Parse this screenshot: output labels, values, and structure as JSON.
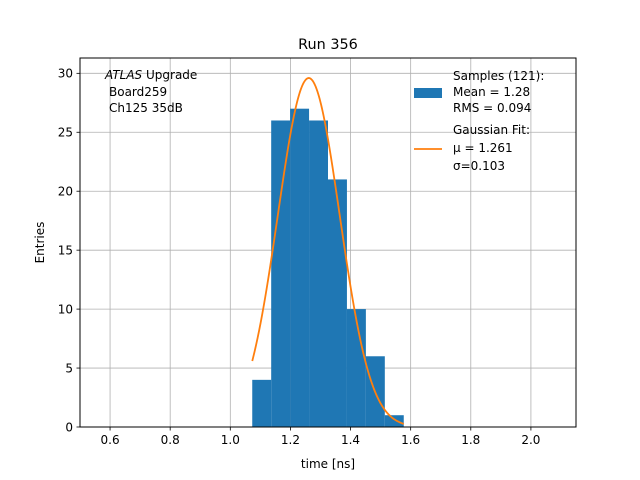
{
  "chart_data": {
    "type": "bar",
    "title": "Run 356",
    "xlabel": "time [ns]",
    "ylabel": "Entries",
    "xlim": [
      0.5,
      2.15
    ],
    "ylim": [
      0,
      31.3
    ],
    "xticks": [
      0.6,
      0.8,
      1.0,
      1.2,
      1.4,
      1.6,
      1.8,
      2.0
    ],
    "xtick_labels": [
      "0.6",
      "0.8",
      "1.0",
      "1.2",
      "1.4",
      "1.6",
      "1.8",
      "2.0"
    ],
    "yticks": [
      0,
      5,
      10,
      15,
      20,
      25,
      30
    ],
    "ytick_labels": [
      "0",
      "5",
      "10",
      "15",
      "20",
      "25",
      "30"
    ],
    "grid": true,
    "annotation": {
      "line1_italic": "ATLAS",
      "line1_rest": " Upgrade",
      "line2": "Board259",
      "line3": "Ch125 35dB"
    },
    "histogram": {
      "bin_edges": [
        1.073,
        1.136,
        1.199,
        1.262,
        1.325,
        1.388,
        1.451,
        1.514,
        1.577
      ],
      "counts": [
        4,
        26,
        27,
        26,
        21,
        10,
        6,
        1
      ],
      "color": "#1f77b4"
    },
    "fit": {
      "type": "gaussian",
      "amplitude": 29.6,
      "mu": 1.261,
      "sigma": 0.103,
      "x_range": [
        1.073,
        1.577
      ],
      "color": "#ff7f0e"
    },
    "legend": {
      "position": "upper right",
      "entries": [
        {
          "kind": "patch",
          "color": "#1f77b4",
          "lines": [
            "Samples (121):",
            " Mean = 1.28",
            " RMS = 0.094"
          ]
        },
        {
          "kind": "line",
          "color": "#ff7f0e",
          "lines": [
            "Gaussian Fit:",
            " μ = 1.261",
            " σ=0.103"
          ]
        }
      ]
    }
  }
}
